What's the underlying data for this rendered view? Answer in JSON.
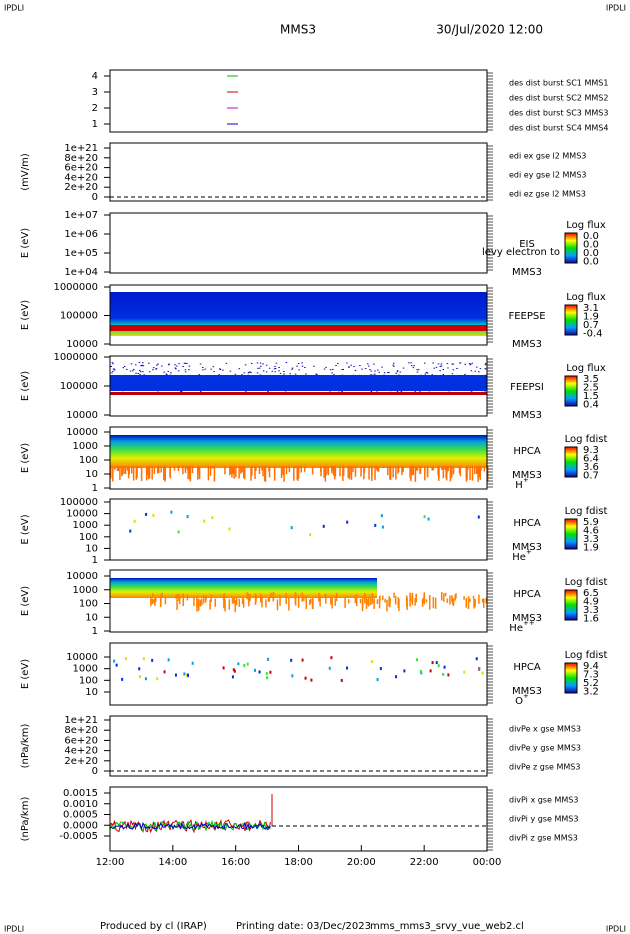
{
  "header": {
    "corner_left": "IPDLI",
    "corner_right": "IPDLI",
    "mission": "MMS3",
    "datetime": "30/Jul/2020 12:00"
  },
  "footer": {
    "corner_left": "IPDLI",
    "corner_right": "IPDLI",
    "produced": "Produced by cl (IRAP)",
    "printing": "Printing date: 03/Dec/2023",
    "file": "mms_mms3_srvy_vue_web2.cl"
  },
  "x_axis": {
    "ticks": [
      "12:00",
      "14:00",
      "16:00",
      "18:00",
      "20:00",
      "22:00",
      "00:00"
    ]
  },
  "panels": [
    {
      "kind": "flags",
      "yticks": [
        "4",
        "3",
        "2",
        "1"
      ],
      "legend": [
        {
          "name": "des dist burst SC1 MMS1",
          "color": "#0000cc"
        },
        {
          "name": "des dist burst SC2 MMS2",
          "color": "#cc00cc"
        },
        {
          "name": "des dist burst SC3 MMS3",
          "color": "#cc0000"
        },
        {
          "name": "des dist burst SC4 MMS4",
          "color": "#00bb00"
        }
      ]
    },
    {
      "kind": "empty",
      "ylabel": "(mV/m)",
      "yticks": [
        "1e+21",
        "8e+20",
        "6e+20",
        "4e+20",
        "2e+20",
        "0"
      ],
      "legend": [
        {
          "name": "edi ex gse l2 MMS3",
          "color": "#cc0000"
        },
        {
          "name": "edi ey gse l2 MMS3",
          "color": "#00bb00"
        },
        {
          "name": "edi ez gse l2 MMS3",
          "color": "#0000cc"
        }
      ]
    },
    {
      "kind": "spec-empty",
      "ylabel": "E (eV)",
      "yticks": [
        "1e+07",
        "1e+06",
        "1e+05",
        "1e+04"
      ],
      "labels": [
        "EIS",
        "MMS3"
      ],
      "note": "levy electron to",
      "colorbar": {
        "title": "Log flux",
        "labels": [
          "0.0",
          "0.0",
          "0.0",
          "0.0"
        ]
      }
    },
    {
      "kind": "feepse",
      "ylabel": "E (eV)",
      "yticks": [
        "1000000",
        "100000",
        "10000"
      ],
      "labels": [
        "FEEPSE",
        "MMS3"
      ],
      "colorbar": {
        "title": "Log flux",
        "labels": [
          "3.1",
          "1.9",
          "0.7",
          "-0.4"
        ]
      }
    },
    {
      "kind": "feepsi",
      "ylabel": "E (eV)",
      "yticks": [
        "1000000",
        "100000",
        "10000"
      ],
      "labels": [
        "FEEPSI",
        "MMS3"
      ],
      "colorbar": {
        "title": "Log flux",
        "labels": [
          "3.5",
          "2.5",
          "1.5",
          "0.4"
        ]
      }
    },
    {
      "kind": "hplus",
      "ylabel": "E (eV)",
      "yticks": [
        "10000",
        "1000",
        "100",
        "10",
        "1"
      ],
      "labels": [
        "HPCA",
        "MMS3"
      ],
      "species": {
        "base": "H",
        "sup": "+"
      },
      "colorbar": {
        "title": "Log fdist",
        "labels": [
          "9.3",
          "6.4",
          "3.6",
          "0.7"
        ]
      }
    },
    {
      "kind": "heplus",
      "ylabel": "E (eV)",
      "yticks": [
        "100000",
        "10000",
        "1000",
        "100",
        "10",
        "1"
      ],
      "labels": [
        "HPCA",
        "MMS3"
      ],
      "species": {
        "base": "He",
        "sup": "+"
      },
      "colorbar": {
        "title": "Log fdist",
        "labels": [
          "5.9",
          "4.6",
          "3.3",
          "1.9"
        ]
      }
    },
    {
      "kind": "hepp",
      "ylabel": "E (eV)",
      "yticks": [
        "10000",
        "1000",
        "100",
        "10",
        "1"
      ],
      "labels": [
        "HPCA",
        "MMS3"
      ],
      "species": {
        "base": "He",
        "sup": "++"
      },
      "colorbar": {
        "title": "Log fdist",
        "labels": [
          "6.5",
          "4.9",
          "3.3",
          "1.6"
        ]
      }
    },
    {
      "kind": "oplus",
      "ylabel": "E (eV)",
      "yticks": [
        "10000",
        "1000",
        "100",
        "10"
      ],
      "labels": [
        "HPCA",
        "MMS3"
      ],
      "species": {
        "base": "O",
        "sup": "+"
      },
      "colorbar": {
        "title": "Log fdist",
        "labels": [
          "9.4",
          "7.3",
          "5.2",
          "3.2"
        ]
      }
    },
    {
      "kind": "empty",
      "ylabel": "(nPa/km)",
      "yticks": [
        "1e+21",
        "8e+20",
        "6e+20",
        "4e+20",
        "2e+20",
        "0"
      ],
      "legend": [
        {
          "name": "divPe x gse MMS3",
          "color": "#cc0000"
        },
        {
          "name": "divPe y gse MMS3",
          "color": "#00bb00"
        },
        {
          "name": "divPe z gse MMS3",
          "color": "#0000cc"
        }
      ]
    },
    {
      "kind": "divpi",
      "ylabel": "(nPa/km)",
      "yticks": [
        "0.0015",
        "0.0010",
        "0.0005",
        "0.0000",
        "-0.0005"
      ],
      "legend": [
        {
          "name": "divPi x gse MMS3",
          "color": "#cc0000"
        },
        {
          "name": "divPi y gse MMS3",
          "color": "#00bb00"
        },
        {
          "name": "divPi z gse MMS3",
          "color": "#0000cc"
        }
      ]
    }
  ]
}
